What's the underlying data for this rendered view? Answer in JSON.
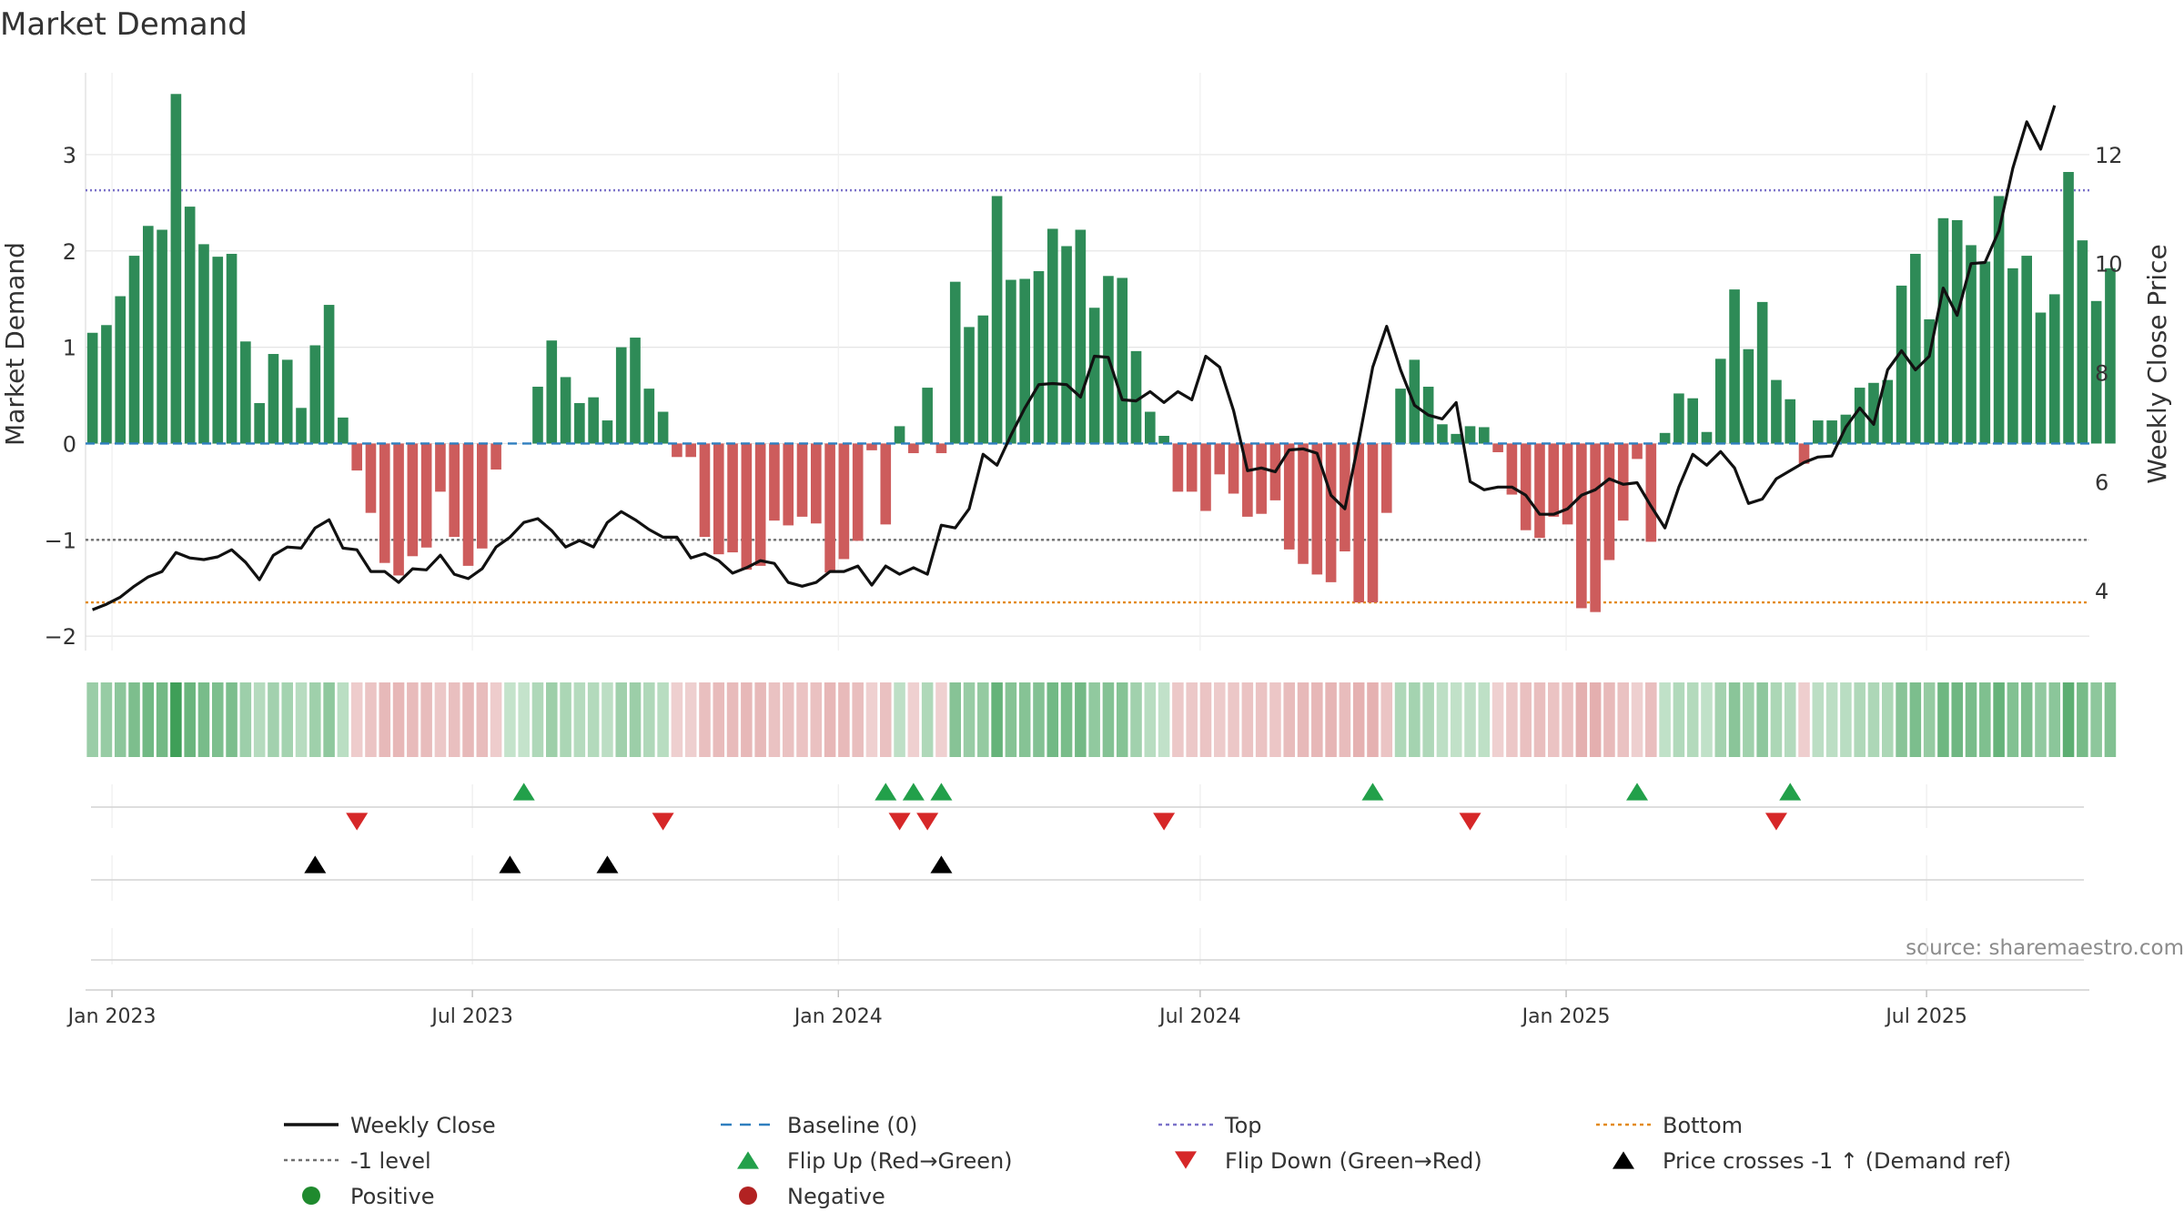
{
  "chart_data": {
    "type": "bar",
    "title": "Market Demand",
    "ylabel": "Market Demand",
    "y2label": "Weekly Close Price",
    "ylim": [
      -2.15,
      3.85
    ],
    "y2lim": [
      2.9,
      13.5
    ],
    "yticks": [
      3,
      2,
      1,
      0,
      -1,
      -2
    ],
    "ytick_labels": [
      "3",
      "2",
      "1",
      "0",
      "−1",
      "−2"
    ],
    "y2ticks": [
      12,
      10,
      8,
      6,
      4
    ],
    "y2tick_labels": [
      "12",
      "10",
      "8",
      "6",
      "4"
    ],
    "x_start": "2022-12-23",
    "x_step_days": 7,
    "xlim_index": [
      -0.5,
      143.5
    ],
    "xticks": [
      {
        "label": "Jan 2023",
        "index": 1.4
      },
      {
        "label": "Jul 2023",
        "index": 27.3
      },
      {
        "label": "Jan 2024",
        "index": 53.6
      },
      {
        "label": "Jul 2024",
        "index": 79.6
      },
      {
        "label": "Jan 2025",
        "index": 105.9
      },
      {
        "label": "Jul 2025",
        "index": 131.8
      }
    ],
    "reference_lines": [
      {
        "name": "Top",
        "value": 2.63,
        "color": "#7b72c9",
        "dash": "2,3"
      },
      {
        "name": "-1 level",
        "value": -1.0,
        "color": "#707070",
        "dash": "3,3"
      },
      {
        "name": "Bottom",
        "value": -1.65,
        "color": "#e38a1c",
        "dash": "3,3"
      },
      {
        "name": "Baseline (0)",
        "value": 0,
        "color": "#2f7fbf",
        "dash": "10,6"
      }
    ],
    "bar_series_name": "Market Demand",
    "demand": [
      1.15,
      1.23,
      1.53,
      1.95,
      2.26,
      2.22,
      3.63,
      2.46,
      2.07,
      1.94,
      1.97,
      1.06,
      0.42,
      0.93,
      0.87,
      0.37,
      1.02,
      1.44,
      0.27,
      -0.28,
      -0.72,
      -1.24,
      -1.37,
      -1.17,
      -1.08,
      -0.5,
      -0.97,
      -1.27,
      -1.09,
      -0.27,
      0,
      0,
      0.59,
      1.07,
      0.69,
      0.42,
      0.48,
      0.24,
      1.0,
      1.1,
      0.57,
      0.33,
      -0.14,
      -0.14,
      -0.97,
      -1.15,
      -1.13,
      -1.31,
      -1.27,
      -0.8,
      -0.85,
      -0.76,
      -0.83,
      -1.34,
      -1.2,
      -1.01,
      -0.07,
      -0.84,
      0.18,
      -0.1,
      0.58,
      -0.1,
      1.68,
      1.21,
      1.33,
      2.57,
      1.7,
      1.71,
      1.79,
      2.23,
      2.05,
      2.22,
      1.41,
      1.74,
      1.72,
      0.96,
      0.33,
      0.08,
      -0.5,
      -0.5,
      -0.7,
      -0.32,
      -0.52,
      -0.76,
      -0.73,
      -0.59,
      -1.1,
      -1.25,
      -1.36,
      -1.44,
      -1.12,
      -1.65,
      -1.65,
      -0.72,
      0.57,
      0.87,
      0.59,
      0.2,
      0.1,
      0.18,
      0.17,
      -0.09,
      -0.53,
      -0.9,
      -0.98,
      -0.76,
      -0.84,
      -1.71,
      -1.75,
      -1.21,
      -0.8,
      -0.16,
      -1.02,
      0.11,
      0.52,
      0.47,
      0.12,
      0.88,
      1.6,
      0.98,
      1.47,
      0.66,
      0.46,
      -0.21,
      0.24,
      0.24,
      0.3,
      0.58,
      0.63,
      0.66,
      1.64,
      1.97,
      1.29,
      2.34,
      2.32,
      2.06,
      1.89,
      2.57,
      1.82,
      1.95,
      1.36,
      1.55,
      2.82,
      2.11,
      1.48,
      1.82
    ],
    "line_series_name": "Weekly Close",
    "price": [
      3.65,
      3.75,
      3.88,
      4.08,
      4.25,
      4.35,
      4.7,
      4.6,
      4.57,
      4.62,
      4.75,
      4.52,
      4.2,
      4.65,
      4.8,
      4.78,
      5.15,
      5.3,
      4.78,
      4.75,
      4.35,
      4.35,
      4.15,
      4.4,
      4.38,
      4.65,
      4.3,
      4.22,
      4.4,
      4.8,
      4.98,
      5.25,
      5.32,
      5.1,
      4.8,
      4.92,
      4.8,
      5.25,
      5.45,
      5.3,
      5.12,
      4.98,
      4.98,
      4.6,
      4.68,
      4.55,
      4.32,
      4.42,
      4.55,
      4.5,
      4.15,
      4.08,
      4.15,
      4.35,
      4.35,
      4.45,
      4.1,
      4.45,
      4.3,
      4.42,
      4.3,
      5.2,
      5.15,
      5.5,
      6.5,
      6.3,
      6.85,
      7.35,
      7.78,
      7.8,
      7.78,
      7.55,
      8.3,
      8.28,
      7.5,
      7.48,
      7.65,
      7.45,
      7.65,
      7.5,
      8.3,
      8.1,
      7.3,
      6.2,
      6.25,
      6.18,
      6.58,
      6.6,
      6.52,
      5.75,
      5.5,
      6.75,
      8.1,
      8.85,
      8.05,
      7.4,
      7.22,
      7.15,
      7.45,
      6.0,
      5.85,
      5.9,
      5.9,
      5.75,
      5.4,
      5.4,
      5.5,
      5.75,
      5.85,
      6.05,
      5.95,
      5.98,
      5.55,
      5.15,
      5.9,
      6.5,
      6.3,
      6.55,
      6.25,
      5.6,
      5.68,
      6.05,
      6.2,
      6.35,
      6.45,
      6.47,
      7.0,
      7.35,
      7.05,
      8.05,
      8.4,
      8.05,
      8.3,
      9.55,
      9.05,
      10.0,
      10.02,
      10.6,
      11.75,
      12.6,
      12.1,
      12.9
    ],
    "flip_up_index": [
      31,
      57,
      59,
      61,
      92,
      111,
      122
    ],
    "flip_down_index": [
      19,
      41,
      58,
      60,
      77,
      99,
      121
    ],
    "price_cross_index": [
      16,
      30,
      37,
      61
    ],
    "colors": {
      "positive_bar": "#2e8b57",
      "negative_bar": "#cd5c5c",
      "price_line": "#111111",
      "flip_up": "#22a04a",
      "flip_down": "#d62728",
      "price_cross": "#000000",
      "grid": "#e4e4e4",
      "text": "#333333"
    },
    "watermark": "source: sharemaestro.com",
    "legend": [
      {
        "label": "Weekly Close",
        "symbol": "line",
        "color": "#111111"
      },
      {
        "label": "Baseline (0)",
        "symbol": "dash",
        "color": "#2f7fbf"
      },
      {
        "label": "Top",
        "symbol": "dot",
        "color": "#7b72c9"
      },
      {
        "label": "Bottom",
        "symbol": "dot",
        "color": "#e38a1c"
      },
      {
        "label": "-1 level",
        "symbol": "dot",
        "color": "#707070"
      },
      {
        "label": "Flip Up (Red→Green)",
        "symbol": "tri-up",
        "color": "#22a04a"
      },
      {
        "label": "Flip Down (Green→Red)",
        "symbol": "tri-down",
        "color": "#d62728"
      },
      {
        "label": "Price crosses -1 ↑ (Demand ref)",
        "symbol": "tri-up",
        "color": "#000000"
      },
      {
        "label": "Positive",
        "symbol": "circle",
        "color": "#1f8a2e"
      },
      {
        "label": "Negative",
        "symbol": "circle",
        "color": "#b22222"
      }
    ],
    "legend_position": "bottom"
  }
}
